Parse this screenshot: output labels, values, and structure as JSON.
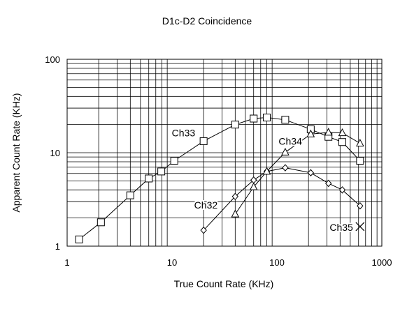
{
  "chart_data": {
    "type": "scatter",
    "title": "D1c-D2 Coincidence",
    "xlabel": "True Count Rate (KHz)",
    "ylabel": "Apparent Count Rate (KHz)",
    "xscale": "log",
    "yscale": "log",
    "xlim": [
      1,
      1000
    ],
    "ylim": [
      1,
      100
    ],
    "grid": true,
    "x_ticks": [
      "1",
      "10",
      "100",
      "1000"
    ],
    "y_ticks": [
      "1",
      "10",
      "100"
    ],
    "series": [
      {
        "name": "Ch33",
        "marker": "square",
        "x": [
          1.3,
          2.1,
          4.0,
          6.0,
          7.9,
          10.5,
          20,
          40,
          60,
          80,
          120,
          210,
          310,
          420,
          620
        ],
        "y": [
          1.18,
          1.8,
          3.5,
          5.3,
          6.3,
          8.2,
          13.3,
          20,
          23.2,
          23.8,
          22.5,
          17.8,
          14.8,
          13.0,
          8.2
        ]
      },
      {
        "name": "Ch32",
        "marker": "diamond",
        "x": [
          20,
          40,
          60,
          80,
          120,
          210,
          310,
          420,
          620
        ],
        "y": [
          1.48,
          3.4,
          5.1,
          6.3,
          6.9,
          6.1,
          4.7,
          4.0,
          2.7
        ]
      },
      {
        "name": "Ch34",
        "marker": "triangle",
        "x": [
          40,
          60,
          80,
          120,
          210,
          310,
          420,
          620
        ],
        "y": [
          2.2,
          4.3,
          6.3,
          10.1,
          15.8,
          16.5,
          16.3,
          12.6
        ]
      },
      {
        "name": "Ch35",
        "marker": "x",
        "x": [
          620
        ],
        "y": [
          1.62
        ]
      }
    ]
  }
}
